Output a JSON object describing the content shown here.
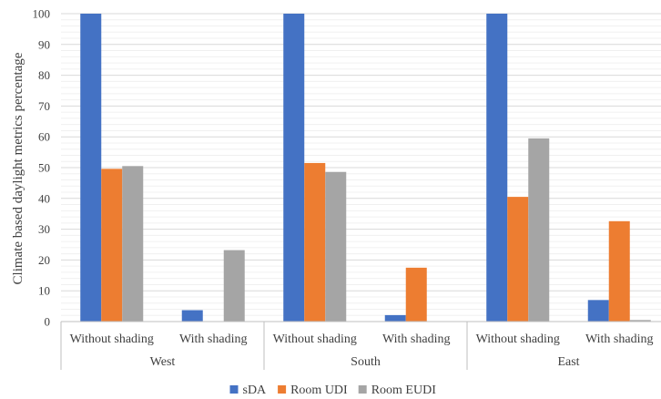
{
  "chart_data": {
    "type": "bar",
    "ylabel": "Climate based daylight metrics percentage",
    "ylim": [
      0,
      100
    ],
    "yticks": [
      0,
      10,
      20,
      30,
      40,
      50,
      60,
      70,
      80,
      90,
      100
    ],
    "grid": true,
    "minor_grid": true,
    "legend_position": "bottom",
    "groups": [
      {
        "label": "West",
        "categories": [
          "Without shading",
          "With shading"
        ]
      },
      {
        "label": "South",
        "categories": [
          "Without shading",
          "With shading"
        ]
      },
      {
        "label": "East",
        "categories": [
          "Without shading",
          "With shading"
        ]
      }
    ],
    "categories": [
      "Without shading",
      "With shading",
      "Without shading",
      "With shading",
      "Without shading",
      "With shading"
    ],
    "series": [
      {
        "name": "sDA",
        "color": "#4472C4",
        "values": [
          100,
          3.7,
          100,
          2.1,
          100,
          7.0
        ]
      },
      {
        "name": "Room UDI",
        "color": "#ED7D31",
        "values": [
          49.6,
          0,
          51.5,
          17.5,
          40.5,
          32.6
        ]
      },
      {
        "name": "Room EUDI",
        "color": "#A5A5A5",
        "values": [
          50.5,
          23.2,
          48.6,
          0,
          59.5,
          0.5
        ]
      }
    ]
  }
}
